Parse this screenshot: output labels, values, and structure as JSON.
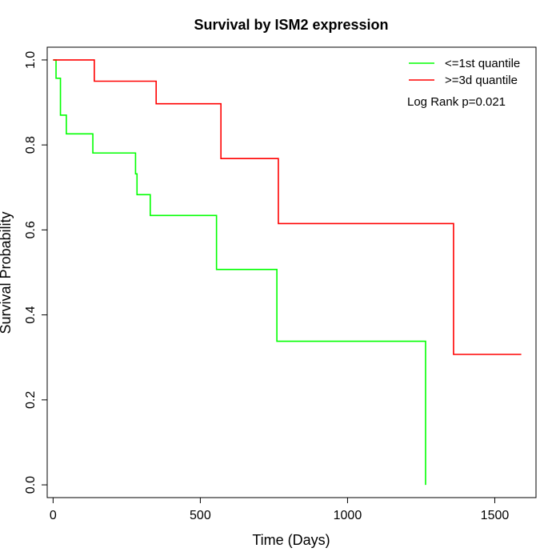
{
  "chart_data": {
    "type": "line",
    "title": "Survival by ISM2 expression",
    "xlabel": "Time (Days)",
    "ylabel": "Survival Probability",
    "xlim": [
      -20,
      1640
    ],
    "ylim": [
      -0.03,
      1.03
    ],
    "xticks": [
      0,
      500,
      1000,
      1500
    ],
    "yticks": [
      0.0,
      0.2,
      0.4,
      0.6,
      0.8,
      1.0
    ],
    "xtick_labels": [
      "0",
      "500",
      "1000",
      "1500"
    ],
    "ytick_labels": [
      "0.0",
      "0.2",
      "0.4",
      "0.6",
      "0.8",
      "1.0"
    ],
    "legend_position": "top-right",
    "annotation": "Log Rank p=0.021",
    "series": [
      {
        "name": "<=1st quantile",
        "color": "#00ff00",
        "step_x": [
          0,
          10,
          25,
          45,
          135,
          280,
          285,
          330,
          555,
          760,
          1265,
          1265
        ],
        "step_y": [
          1.0,
          0.957,
          0.87,
          0.826,
          0.781,
          0.732,
          0.683,
          0.634,
          0.507,
          0.338,
          0.338,
          0.0
        ]
      },
      {
        "name": ">=3d quantile",
        "color": "#ff0000",
        "step_x": [
          0,
          140,
          350,
          570,
          765,
          1360,
          1590
        ],
        "step_y": [
          1.0,
          0.95,
          0.897,
          0.768,
          0.615,
          0.307,
          0.307
        ]
      }
    ]
  }
}
